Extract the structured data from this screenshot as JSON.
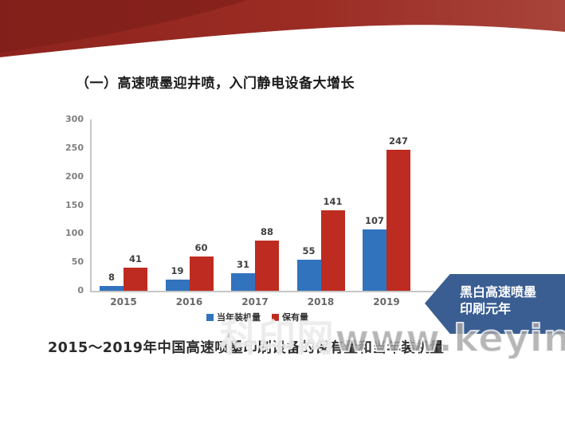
{
  "slide": {
    "title": "（一）高速喷墨迎井喷，入门静电设备大增长",
    "caption": "2015～2019年中国高速喷墨印刷设备的保有量和当年装机量",
    "callout": {
      "line1": "黑白高速喷墨",
      "line2": "印刷元年",
      "color": "#3a5e92"
    },
    "watermark": "科印网www.keyin.cn"
  },
  "chart_data": {
    "type": "bar",
    "categories": [
      "2015",
      "2016",
      "2017",
      "2018",
      "2019"
    ],
    "series": [
      {
        "name": "当年装机量",
        "color": "#3273be",
        "values": [
          8,
          19,
          31,
          55,
          107
        ]
      },
      {
        "name": "保有量",
        "color": "#be2b20",
        "values": [
          41,
          60,
          88,
          141,
          247
        ]
      }
    ],
    "title": "",
    "xlabel": "",
    "ylabel": "",
    "ylim": [
      0,
      300
    ],
    "yticks": [
      0,
      50,
      100,
      150,
      200,
      250,
      300
    ],
    "grid": false,
    "legend_position": "bottom"
  },
  "colors": {
    "ribbon_dark": "#7c1d18",
    "ribbon_main": "#992a23",
    "ribbon_light": "#ab463d",
    "axis": "#c6c6c6"
  }
}
